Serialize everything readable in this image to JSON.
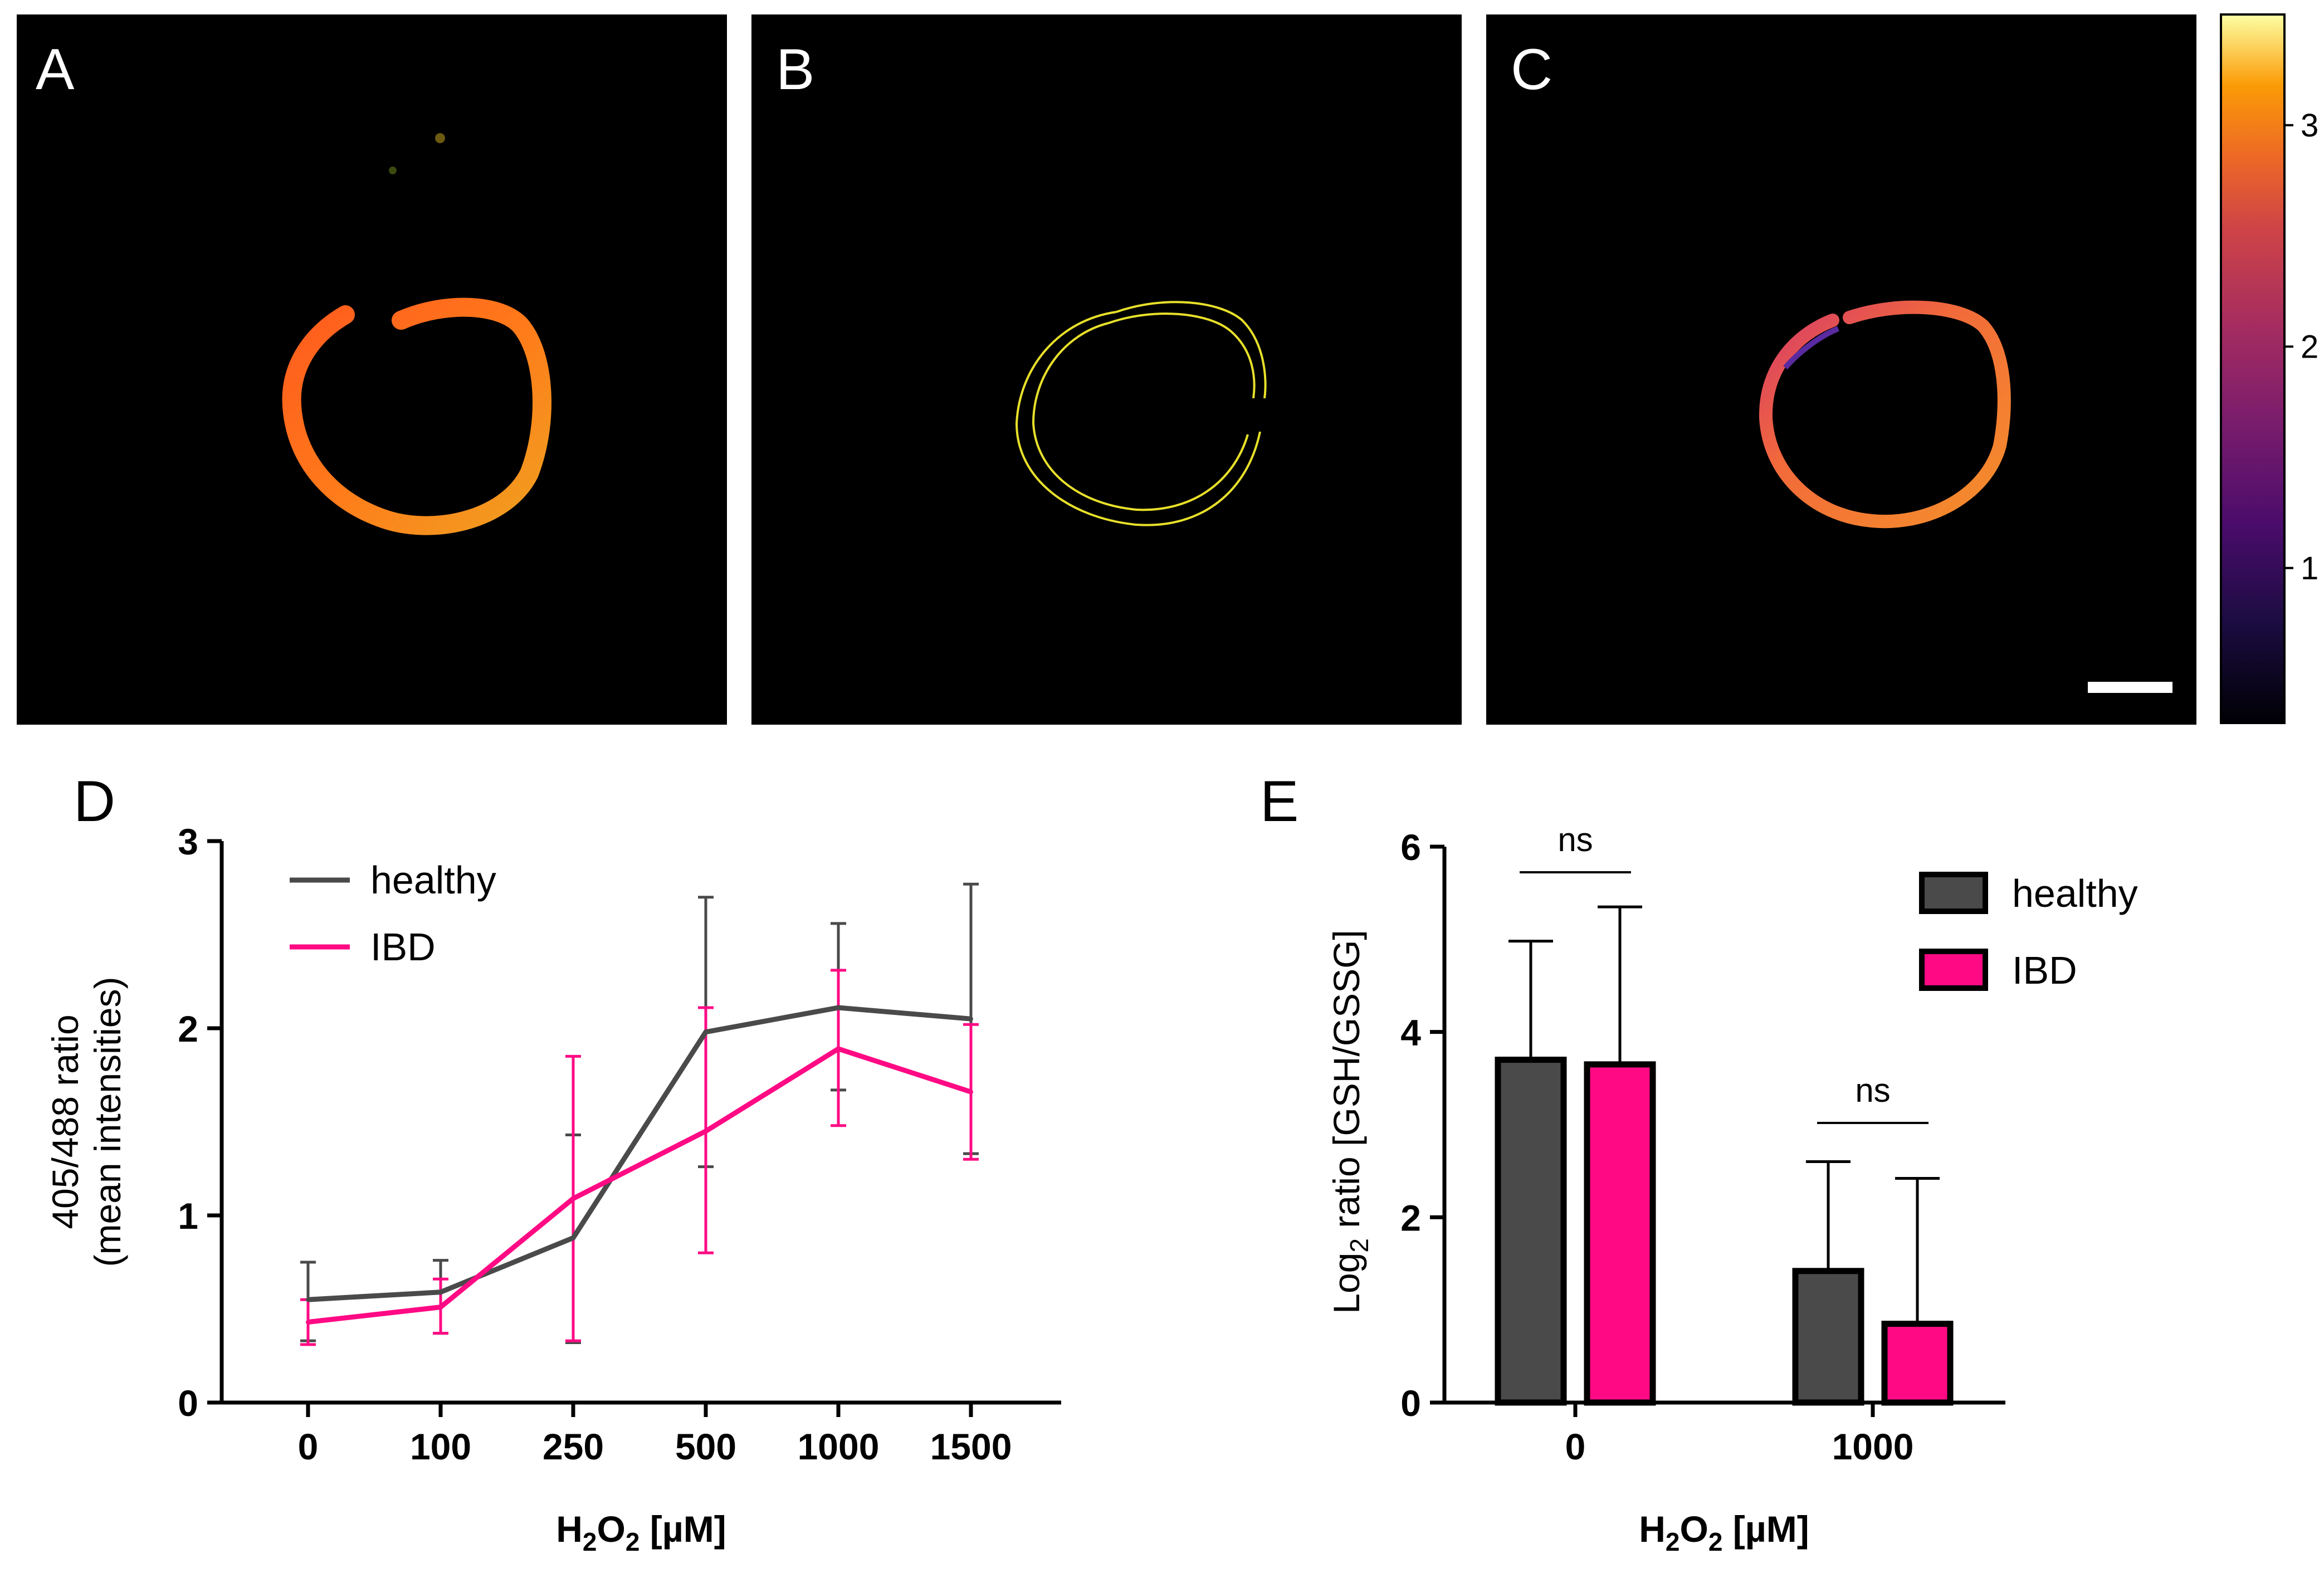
{
  "panels": {
    "a": "A",
    "b": "B",
    "c": "C",
    "d": "D",
    "e": "E"
  },
  "colors": {
    "healthy": "#4a4a4a",
    "ibd": "#ff0a84",
    "image_bg": "#000000"
  },
  "colorbar": {
    "ticks": [
      "1",
      "2",
      "3"
    ],
    "range": [
      0.3,
      3.5
    ]
  },
  "chart_data": [
    {
      "type": "line",
      "panel": "D",
      "categories": [
        "0",
        "100",
        "250",
        "500",
        "1000",
        "1500"
      ],
      "series": [
        {
          "name": "healthy",
          "values": [
            0.55,
            0.59,
            0.88,
            1.98,
            2.11,
            2.05
          ],
          "err_up": [
            0.2,
            0.17,
            0.55,
            0.72,
            0.45,
            0.72
          ],
          "err_down": [
            0.22,
            0.22,
            0.56,
            0.72,
            0.44,
            0.72
          ]
        },
        {
          "name": "IBD",
          "values": [
            0.43,
            0.51,
            1.09,
            1.45,
            1.89,
            1.66
          ],
          "err_up": [
            0.12,
            0.15,
            0.76,
            0.66,
            0.42,
            0.36
          ],
          "err_down": [
            0.12,
            0.14,
            0.76,
            0.65,
            0.41,
            0.36
          ]
        }
      ],
      "yticks": [
        "0",
        "1",
        "2",
        "3"
      ],
      "ylim": [
        0,
        3
      ],
      "xlabel_main": "H",
      "xlabel_sub1": "2",
      "xlabel_mid": "O",
      "xlabel_sub2": "2",
      "xlabel_unit": "[µM]",
      "ylabel_line1": "405/488 ratio",
      "ylabel_line2": "(mean intensities)",
      "legend": [
        "healthy",
        "IBD"
      ],
      "legend_position": "top-left"
    },
    {
      "type": "bar",
      "panel": "E",
      "categories": [
        "0",
        "1000"
      ],
      "series": [
        {
          "name": "healthy",
          "values": [
            3.7,
            1.42
          ],
          "err_up": [
            1.28,
            1.18
          ]
        },
        {
          "name": "IBD",
          "values": [
            3.65,
            0.85
          ],
          "err_up": [
            1.7,
            1.57
          ]
        }
      ],
      "yticks": [
        "0",
        "2",
        "4",
        "6"
      ],
      "ylim": [
        0,
        6
      ],
      "significance": [
        "ns",
        "ns"
      ],
      "xlabel_main": "H",
      "xlabel_sub1": "2",
      "xlabel_mid": "O",
      "xlabel_sub2": "2",
      "xlabel_unit": "[µM]",
      "ylabel_main": "Log",
      "ylabel_sub": "2",
      "ylabel_rest": " ratio [GSH/GSSG]",
      "legend": [
        "healthy",
        "IBD"
      ],
      "legend_position": "top-right"
    }
  ]
}
